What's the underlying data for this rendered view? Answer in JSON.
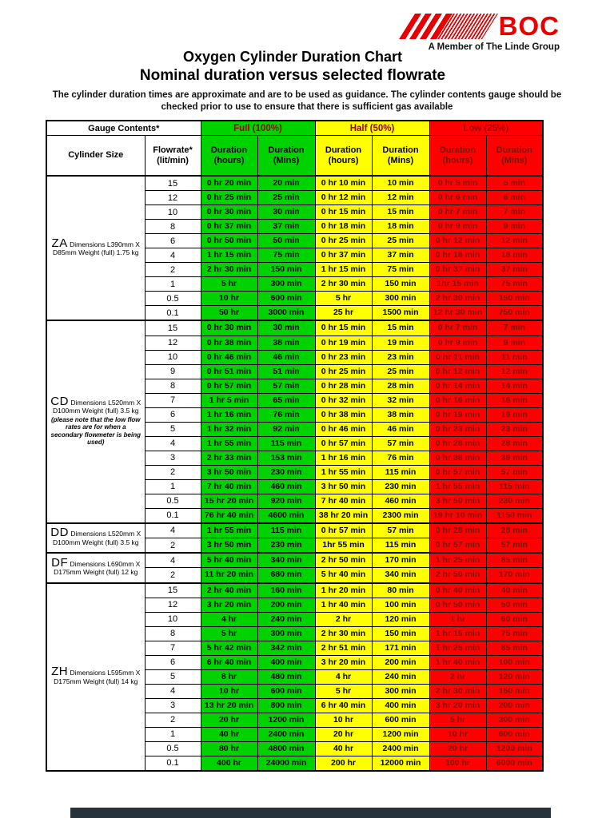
{
  "logo": {
    "text": "BOC",
    "tagline": "A Member of The Linde Group"
  },
  "title": {
    "line1": "Oxygen Cylinder Duration Chart",
    "line2": "Nominal duration versus selected flowrate"
  },
  "note": {
    "line1": "The cylinder duration times are approximate and are to be used as guidance.  The cylinder contents gauge should be",
    "line2": "checked prior to use to ensure that there is sufficient gas available"
  },
  "colors": {
    "full": "#00d200",
    "half": "#ffff00",
    "low": "#fe0000",
    "band_label_text": "#a00000",
    "low_cell_text": "#7a1408",
    "logo_red": "#e60000"
  },
  "table": {
    "gauge_contents_label": "Gauge Contents*",
    "cylinder_size_label": "Cylinder Size",
    "flowrate_label": "Flowrate*",
    "flowrate_unit": "(lit/min)",
    "duration_labels": [
      "Duration (hours)",
      "Duration (Mins)"
    ],
    "bands": [
      {
        "label": "Full (100%)",
        "key": "full"
      },
      {
        "label": "Half (50%)",
        "key": "half"
      },
      {
        "label": "Low (25%)",
        "key": "low"
      }
    ],
    "sections": [
      {
        "code": "ZA",
        "desc": "Dimensions L390mm X D85mm Weight (full) 1.75 kg",
        "rows": [
          {
            "flow": "15",
            "values": [
              "0 hr 20 min",
              "20 min",
              "0 hr 10 min",
              "10 min",
              "0 hr 5 min",
              "5 min"
            ]
          },
          {
            "flow": "12",
            "values": [
              "0 hr 25 min",
              "25 min",
              "0 hr 12 min",
              "12 min",
              "0 hr 6 min",
              "6 min"
            ]
          },
          {
            "flow": "10",
            "values": [
              "0 hr 30 min",
              "30 min",
              "0 hr 15 min",
              "15 min",
              "0 hr 7 min",
              "7 min"
            ]
          },
          {
            "flow": "8",
            "values": [
              "0 hr 37 min",
              "37 min",
              "0 hr 18 min",
              "18 min",
              "0 hr 9 min",
              "9 min"
            ]
          },
          {
            "flow": "6",
            "values": [
              "0 hr 50 min",
              "50 min",
              "0 hr 25 min",
              "25 min",
              "0 hr 12 min",
              "12 min"
            ]
          },
          {
            "flow": "4",
            "values": [
              "1 hr 15 min",
              "75 min",
              "0 hr 37 min",
              "37 min",
              "0 hr 18 min",
              "18 min"
            ]
          },
          {
            "flow": "2",
            "values": [
              "2 hr 30 min",
              "150 min",
              "1 hr 15 min",
              "75 min",
              "0 hr 37 min",
              "37 min"
            ]
          },
          {
            "flow": "1",
            "values": [
              "5 hr",
              "300 min",
              "2 hr 30 min",
              "150 min",
              "1hr 15 min",
              "75 min"
            ]
          },
          {
            "flow": "0.5",
            "values": [
              "10 hr",
              "600 min",
              "5 hr",
              "300 min",
              "2 hr 30 min",
              "150 min"
            ]
          },
          {
            "flow": "0.1",
            "values": [
              "50 hr",
              "3000 min",
              "25 hr",
              "1500 min",
              "12 hr 30 min",
              "750 min"
            ]
          }
        ]
      },
      {
        "code": "CD",
        "desc": "Dimensions L520mm X D100mm Weight (full) 3.5 kg",
        "note": "(please note that the low flow rates are for when a secondary flowmeter is being used)",
        "rows": [
          {
            "flow": "15",
            "values": [
              "0 hr 30 min",
              "30 min",
              "0 hr 15 min",
              "15 min",
              "0 hr 7 min",
              "7 min"
            ]
          },
          {
            "flow": "12",
            "values": [
              "0 hr 38 min",
              "38 min",
              "0 hr 19 min",
              "19 min",
              "0 hr 9 min",
              "9 min"
            ]
          },
          {
            "flow": "10",
            "values": [
              "0 hr 46 min",
              "46 min",
              "0 hr 23 min",
              "23 min",
              "0 hr 11 min",
              "11 min"
            ]
          },
          {
            "flow": "9",
            "values": [
              "0 hr 51 min",
              "51 min",
              "0 hr 25 min",
              "25 min",
              "0 hr 12 min",
              "12 min"
            ]
          },
          {
            "flow": "8",
            "values": [
              "0 hr 57 min",
              "57 min",
              "0 hr 28 min",
              "28 min",
              "0 hr 14 min",
              "14 min"
            ]
          },
          {
            "flow": "7",
            "values": [
              "1 hr 5 min",
              "65 min",
              "0 hr 32 min",
              "32 min",
              "0 hr 16 min",
              "16 min"
            ]
          },
          {
            "flow": "6",
            "values": [
              "1 hr 16 min",
              "76 min",
              "0 hr 38 min",
              "38 min",
              "0 hr 19 min",
              "19 min"
            ]
          },
          {
            "flow": "5",
            "values": [
              "1 hr 32 min",
              "92 min",
              "0 hr 46 min",
              "46 min",
              "0 hr 23 min",
              "23 min"
            ]
          },
          {
            "flow": "4",
            "values": [
              "1 hr 55 min",
              "115 min",
              "0 hr 57 min",
              "57 min",
              "0 hr 28 min",
              "28 min"
            ]
          },
          {
            "flow": "3",
            "values": [
              "2 hr 33 min",
              "153 min",
              "1 hr 16 min",
              "76 min",
              "0 hr 38 min",
              "38 min"
            ]
          },
          {
            "flow": "2",
            "values": [
              "3 hr 50 min",
              "230 min",
              "1 hr 55 min",
              "115 min",
              "0 hr 57 min",
              "57 min"
            ]
          },
          {
            "flow": "1",
            "values": [
              "7 hr 40 min",
              "460 min",
              "3 hr 50 min",
              "230 min",
              "1 hr 55 min",
              "115 min"
            ]
          },
          {
            "flow": "0.5",
            "values": [
              "15 hr 20 min",
              "920 min",
              "7 hr 40 min",
              "460 min",
              "3 hr 50 min",
              "230 min"
            ]
          },
          {
            "flow": "0.1",
            "values": [
              "76 hr 40 min",
              "4600 min",
              "38 hr 20 min",
              "2300 min",
              "19 hr 10 min",
              "1150 min"
            ]
          }
        ]
      },
      {
        "code": "DD",
        "desc": "Dimensions L520mm X D100mm Weight (full) 3.5 kg",
        "rows": [
          {
            "flow": "4",
            "values": [
              "1 hr 55 min",
              "115 min",
              "0 hr 57 min",
              "57 min",
              "0 hr 28 min",
              "28 min"
            ]
          },
          {
            "flow": "2",
            "values": [
              "3 hr 50 min",
              "230 min",
              "1hr 55 min",
              "115 min",
              "0 hr 57 min",
              "57 min"
            ]
          }
        ]
      },
      {
        "code": "DF",
        "desc": "Dimensions L690mm X D175mm Weight (full) 12 kg",
        "rows": [
          {
            "flow": "4",
            "values": [
              "5 hr 40 min",
              "340 min",
              "2 hr 50 min",
              "170 min",
              "1 hr 25 min",
              "85 min"
            ]
          },
          {
            "flow": "2",
            "values": [
              "11 hr 20 min",
              "680 min",
              "5 hr 40 min",
              "340 min",
              "2 hr 50 min",
              "170 min"
            ]
          }
        ]
      },
      {
        "code": "ZH",
        "desc": "Dimensions L595mm X D175mm Weight (full) 14 kg",
        "rows": [
          {
            "flow": "15",
            "values": [
              "2 hr 40 min",
              "160 min",
              "1 hr 20 min",
              "80 min",
              "0 hr 40 min",
              "40 min"
            ]
          },
          {
            "flow": "12",
            "values": [
              "3 hr 20 min",
              "200 min",
              "1 hr 40 min",
              "100 min",
              "0 hr 50 min",
              "50 min"
            ]
          },
          {
            "flow": "10",
            "values": [
              "4 hr",
              "240 min",
              "2 hr",
              "120 min",
              "1 hr",
              "60 min"
            ]
          },
          {
            "flow": "8",
            "values": [
              "5 hr",
              "300 min",
              "2 hr 30 min",
              "150 min",
              "1 hr 15 min",
              "75 min"
            ]
          },
          {
            "flow": "7",
            "values": [
              "5 hr 42 min",
              "342 min",
              "2 hr 51 min",
              "171 min",
              "1 hr 25 min",
              "85 min"
            ]
          },
          {
            "flow": "6",
            "values": [
              "6 hr 40 min",
              "400 min",
              "3 hr 20 min",
              "200 min",
              "1 hr 40 min",
              "100 min"
            ]
          },
          {
            "flow": "5",
            "values": [
              "8 hr",
              "480 min",
              "4 hr",
              "240 min",
              "2 hr",
              "120 min"
            ]
          },
          {
            "flow": "4",
            "values": [
              "10 hr",
              "600 min",
              "5 hr",
              "300 min",
              "2 hr 30 min",
              "150 min"
            ]
          },
          {
            "flow": "3",
            "values": [
              "13 hr 20 min",
              "800 min",
              "6 hr 40 min",
              "400 min",
              "3 hr 20 min",
              "200 min"
            ]
          },
          {
            "flow": "2",
            "values": [
              "20 hr",
              "1200 min",
              "10 hr",
              "600 min",
              "5 hr",
              "300 min"
            ]
          },
          {
            "flow": "1",
            "values": [
              "40 hr",
              "2400 min",
              "20 hr",
              "1200 min",
              "10 hr",
              "600 min"
            ]
          },
          {
            "flow": "0.5",
            "values": [
              "80 hr",
              "4800 min",
              "40 hr",
              "2400 min",
              "20 hr",
              "1200 min"
            ]
          },
          {
            "flow": "0.1",
            "values": [
              "400 hr",
              "24000 min",
              "200 hr",
              "12000 min",
              "100 hr",
              "6000 min"
            ]
          }
        ]
      }
    ]
  }
}
